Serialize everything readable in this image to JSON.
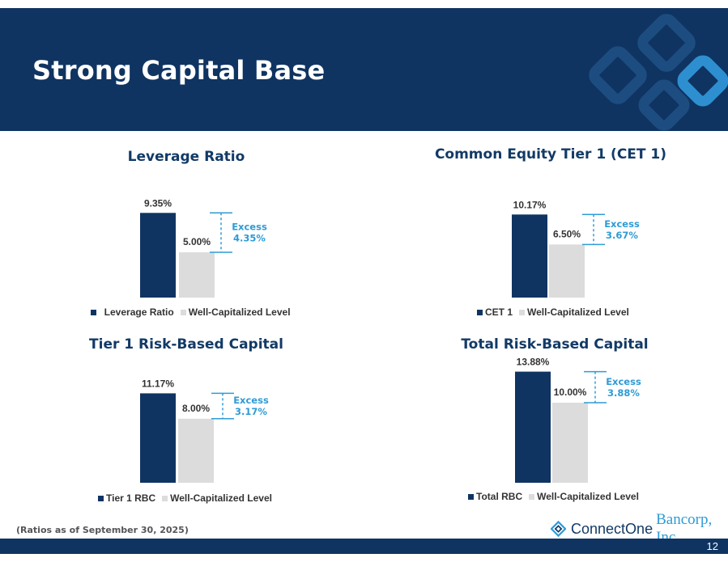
{
  "header": {
    "title": "Strong Capital Base"
  },
  "colors": {
    "navy": "#0f3462",
    "grey": "#dcdcdc",
    "accent": "#2e9bd6"
  },
  "chart_data": [
    {
      "type": "bar",
      "title": "Leverage Ratio",
      "categories": [
        "Leverage Ratio",
        "Well-Capitalized Level"
      ],
      "values": [
        9.35,
        5.0
      ],
      "value_labels": [
        "9.35%",
        "5.00%"
      ],
      "annotation": {
        "label": "Excess",
        "value": "4.35%"
      },
      "legend": [
        "Leverage Ratio",
        "Well-Capitalized Level"
      ],
      "ylim": [
        0,
        14
      ]
    },
    {
      "type": "bar",
      "title": "Common Equity Tier 1 (CET 1)",
      "categories": [
        "CET 1",
        "Well-Capitalized Level"
      ],
      "values": [
        10.17,
        6.5
      ],
      "value_labels": [
        "10.17%",
        "6.50%"
      ],
      "annotation": {
        "label": "Excess",
        "value": "3.67%"
      },
      "legend": [
        "CET 1",
        "Well-Capitalized Level"
      ],
      "ylim": [
        0,
        14
      ]
    },
    {
      "type": "bar",
      "title": "Tier 1 Risk-Based Capital",
      "categories": [
        "Tier 1 RBC",
        "Well-Capitalized Level"
      ],
      "values": [
        11.17,
        8.0
      ],
      "value_labels": [
        "11.17%",
        "8.00%"
      ],
      "annotation": {
        "label": "Excess",
        "value": "3.17%"
      },
      "legend": [
        "Tier 1 RBC",
        "Well-Capitalized Level"
      ],
      "ylim": [
        0,
        14
      ]
    },
    {
      "type": "bar",
      "title": "Total Risk-Based Capital",
      "categories": [
        "Total RBC",
        "Well-Capitalized Level"
      ],
      "values": [
        13.88,
        10.0
      ],
      "value_labels": [
        "13.88%",
        "10.00%"
      ],
      "annotation": {
        "label": "Excess",
        "value": "3.88%"
      },
      "legend": [
        "Total RBC",
        "Well-Capitalized Level"
      ],
      "ylim": [
        0,
        14
      ]
    }
  ],
  "footnote": "(Ratios as of September 30, 2025)",
  "logo": {
    "name_part1": "ConnectOne",
    "name_part2": "Bancorp, Inc."
  },
  "footer": {
    "page_number": "12"
  }
}
